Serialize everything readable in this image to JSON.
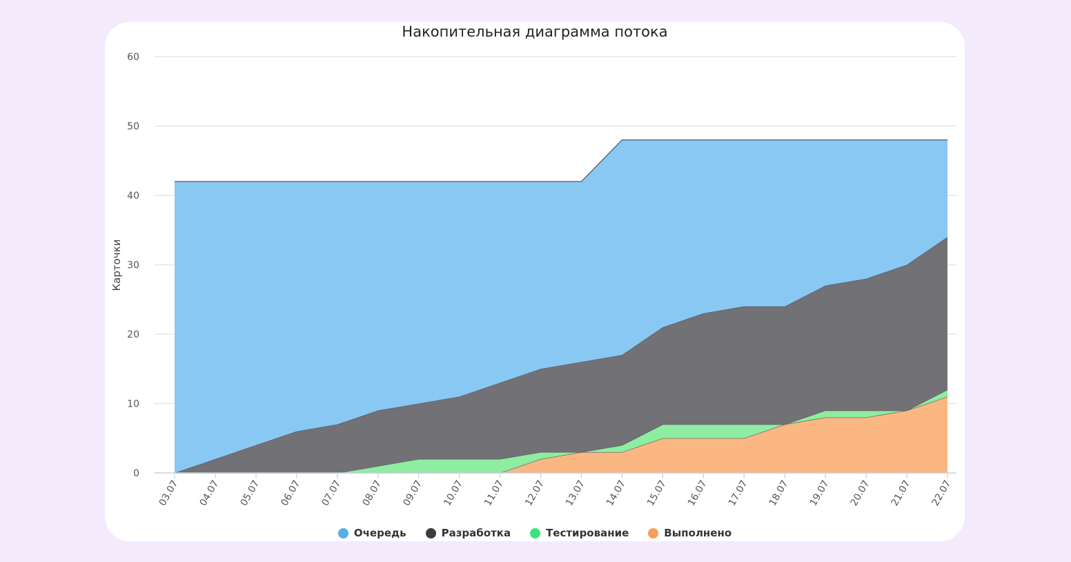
{
  "chart_data": {
    "type": "area",
    "stacked": true,
    "title": "Накопительная диаграмма потока",
    "xlabel": "",
    "ylabel": "Карточки",
    "ylim": [
      0,
      60
    ],
    "yticks": [
      "0",
      "10",
      "20",
      "30",
      "40",
      "50",
      "60"
    ],
    "grid": true,
    "legend_position": "bottom",
    "categories": [
      "03.07",
      "04.07",
      "05.07",
      "06.07",
      "07.07",
      "08.07",
      "09.07",
      "10.07",
      "11.07",
      "12.07",
      "13.07",
      "14.07",
      "15.07",
      "16.07",
      "17.07",
      "18.07",
      "19.07",
      "20.07",
      "21.07",
      "22.07"
    ],
    "series": [
      {
        "name": "Очередь",
        "color": "#89c8f3",
        "legend_color": "#5aaee8",
        "values": [
          42,
          40,
          38,
          36,
          35,
          33,
          32,
          31,
          29,
          27,
          26,
          31,
          27,
          25,
          24,
          24,
          21,
          20,
          18,
          14
        ]
      },
      {
        "name": "Разработка",
        "color": "#727176",
        "legend_color": "#3b3b40",
        "values": [
          0,
          2,
          4,
          6,
          7,
          8,
          8,
          9,
          11,
          12,
          13,
          13,
          14,
          16,
          17,
          17,
          18,
          19,
          21,
          22
        ]
      },
      {
        "name": "Тестирование",
        "color": "#8eeda0",
        "legend_color": "#3ee27a",
        "values": [
          0,
          0,
          0,
          0,
          0,
          1,
          2,
          2,
          2,
          1,
          0,
          1,
          2,
          2,
          2,
          0,
          1,
          1,
          0,
          1
        ]
      },
      {
        "name": "Выполнено",
        "color": "#fbb782",
        "legend_color": "#f99c58",
        "values": [
          0,
          0,
          0,
          0,
          0,
          0,
          0,
          0,
          0,
          2,
          3,
          3,
          5,
          5,
          5,
          7,
          8,
          8,
          9,
          11
        ]
      }
    ]
  }
}
